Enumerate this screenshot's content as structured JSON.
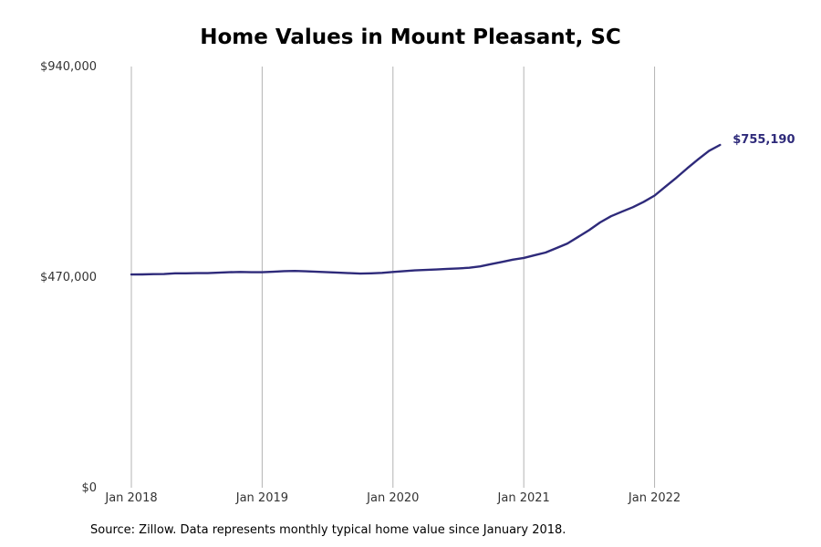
{
  "chart_data": {
    "type": "line",
    "title": "Home Values in Mount Pleasant, SC",
    "xlabel": "",
    "ylabel": "",
    "ylim": [
      0,
      940000
    ],
    "xlim": [
      "2018-01",
      "2022-12"
    ],
    "grid": "vertical",
    "y_ticks": [
      {
        "value": 0,
        "label": "$0"
      },
      {
        "value": 470000,
        "label": "$470,000"
      },
      {
        "value": 940000,
        "label": "$940,000"
      }
    ],
    "x_ticks": [
      {
        "value": "2018-01",
        "label": "Jan 2018"
      },
      {
        "value": "2019-01",
        "label": "Jan 2019"
      },
      {
        "value": "2020-01",
        "label": "Jan 2020"
      },
      {
        "value": "2021-01",
        "label": "Jan 2021"
      },
      {
        "value": "2022-01",
        "label": "Jan 2022"
      }
    ],
    "series": [
      {
        "color": "#2e2a7a",
        "end_label": "$755,190",
        "x": [
          "2018-01",
          "2018-02",
          "2018-03",
          "2018-04",
          "2018-05",
          "2018-06",
          "2018-07",
          "2018-08",
          "2018-09",
          "2018-10",
          "2018-11",
          "2018-12",
          "2019-01",
          "2019-02",
          "2019-03",
          "2019-04",
          "2019-05",
          "2019-06",
          "2019-07",
          "2019-08",
          "2019-09",
          "2019-10",
          "2019-11",
          "2019-12",
          "2020-01",
          "2020-02",
          "2020-03",
          "2020-04",
          "2020-05",
          "2020-06",
          "2020-07",
          "2020-08",
          "2020-09",
          "2020-10",
          "2020-11",
          "2020-12",
          "2021-01",
          "2021-02",
          "2021-03",
          "2021-04",
          "2021-05",
          "2021-06",
          "2021-07",
          "2021-08",
          "2021-09",
          "2021-10",
          "2021-11",
          "2021-12",
          "2022-01",
          "2022-02",
          "2022-03",
          "2022-04",
          "2022-05",
          "2022-06",
          "2022-07"
        ],
        "y": [
          476000,
          476200,
          476800,
          477000,
          478500,
          478600,
          479000,
          479000,
          480000,
          481000,
          481500,
          481000,
          481000,
          482000,
          483500,
          483800,
          483000,
          482000,
          481000,
          480000,
          479000,
          478000,
          478500,
          479500,
          481500,
          483500,
          485000,
          486000,
          487000,
          488500,
          489500,
          491000,
          494000,
          499000,
          504000,
          509000,
          513000,
          519000,
          525000,
          535000,
          545000,
          560000,
          575000,
          592000,
          606000,
          616000,
          626000,
          638000,
          652000,
          672000,
          692000,
          713000,
          733000,
          752000,
          765000
        ]
      }
    ]
  },
  "source_note": "Source: Zillow. Data represents monthly typical home value since January 2018."
}
